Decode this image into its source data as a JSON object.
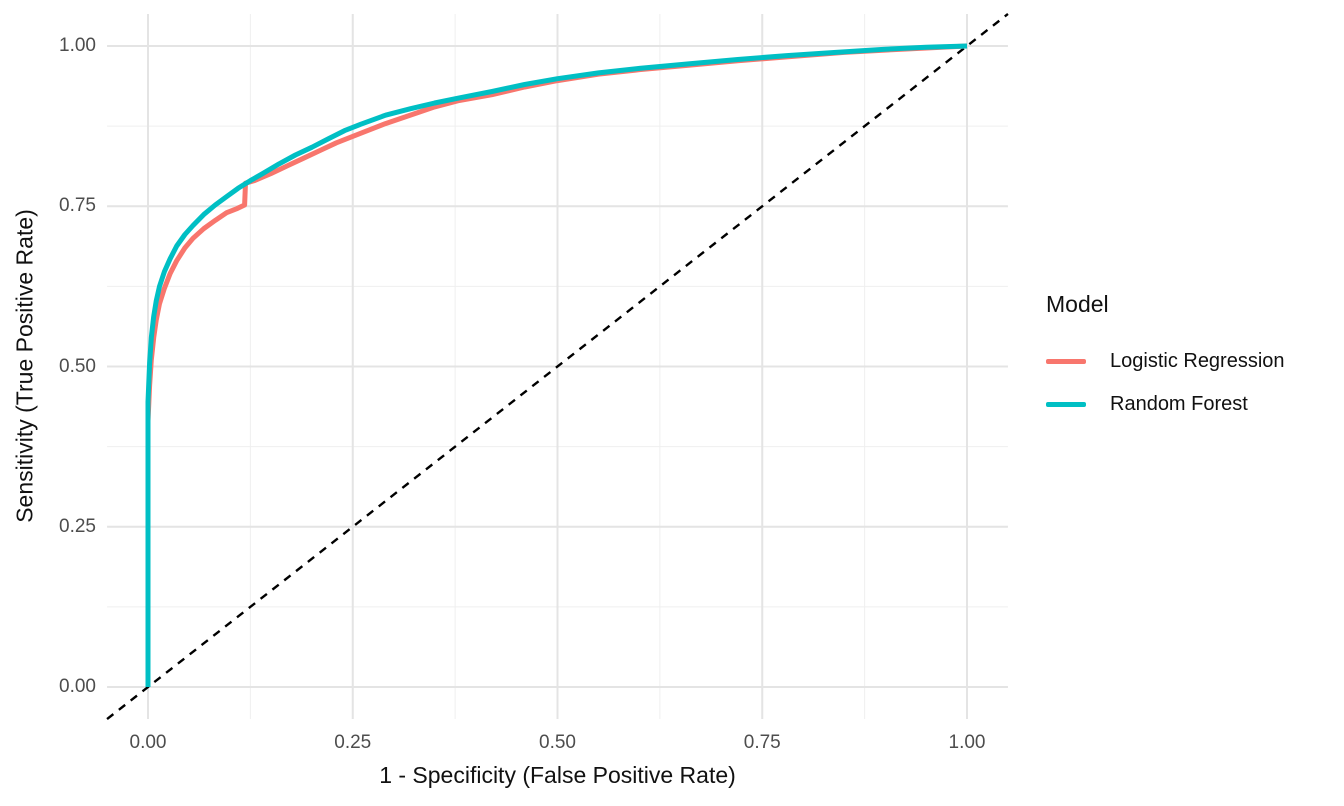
{
  "figure": {
    "x_axis": {
      "label": "1 - Specificity (False Positive Rate)",
      "tick_labels": [
        "0.00",
        "0.25",
        "0.50",
        "0.75",
        "1.00"
      ],
      "tick_values": [
        0,
        0.25,
        0.5,
        0.75,
        1
      ]
    },
    "y_axis": {
      "label": "Sensitivity (True Positive Rate)",
      "tick_labels": [
        "0.00",
        "0.25",
        "0.50",
        "0.75",
        "1.00"
      ],
      "tick_values": [
        0,
        0.25,
        0.5,
        0.75,
        1
      ]
    },
    "legend": {
      "title": "Model",
      "items": [
        {
          "label": "Logistic Regression",
          "color": "#F8766D"
        },
        {
          "label": "Random Forest",
          "color": "#00BFC4"
        }
      ]
    },
    "colors": {
      "background": "#FFFFFF",
      "grid_major": "#E4E4E4",
      "grid_minor": "#EFEFEF",
      "tick_text": "#4D4D4D",
      "axis_title_text": "#111111",
      "reference_line": "#000000"
    }
  },
  "chart_data": {
    "type": "line",
    "title": "",
    "xlabel": "1 - Specificity (False Positive Rate)",
    "ylabel": "Sensitivity (True Positive Rate)",
    "xlim": [
      -0.05,
      1.05
    ],
    "ylim": [
      -0.05,
      1.05
    ],
    "x_ticks": [
      0,
      0.25,
      0.5,
      0.75,
      1
    ],
    "y_ticks": [
      0,
      0.25,
      0.5,
      0.75,
      1
    ],
    "grid": "major+minor",
    "legend_position": "right",
    "legend_title": "Model",
    "reference_line": {
      "style": "dashed",
      "color": "#000000",
      "from": [
        0,
        0
      ],
      "to": [
        1,
        1
      ]
    },
    "series": [
      {
        "name": "Logistic Regression",
        "color": "#F8766D",
        "points": [
          [
            0,
            0
          ],
          [
            0,
            0.415
          ],
          [
            0.002,
            0.47
          ],
          [
            0.004,
            0.51
          ],
          [
            0.007,
            0.545
          ],
          [
            0.01,
            0.572
          ],
          [
            0.014,
            0.598
          ],
          [
            0.02,
            0.622
          ],
          [
            0.027,
            0.645
          ],
          [
            0.035,
            0.665
          ],
          [
            0.045,
            0.685
          ],
          [
            0.055,
            0.7
          ],
          [
            0.068,
            0.715
          ],
          [
            0.082,
            0.728
          ],
          [
            0.096,
            0.74
          ],
          [
            0.108,
            0.746
          ],
          [
            0.118,
            0.752
          ],
          [
            0.119,
            0.786
          ],
          [
            0.13,
            0.79
          ],
          [
            0.15,
            0.801
          ],
          [
            0.17,
            0.813
          ],
          [
            0.19,
            0.825
          ],
          [
            0.21,
            0.837
          ],
          [
            0.23,
            0.849
          ],
          [
            0.26,
            0.864
          ],
          [
            0.29,
            0.879
          ],
          [
            0.32,
            0.892
          ],
          [
            0.35,
            0.905
          ],
          [
            0.38,
            0.915
          ],
          [
            0.42,
            0.924
          ],
          [
            0.46,
            0.936
          ],
          [
            0.5,
            0.946
          ],
          [
            0.55,
            0.956
          ],
          [
            0.6,
            0.963
          ],
          [
            0.66,
            0.97
          ],
          [
            0.72,
            0.977
          ],
          [
            0.78,
            0.983
          ],
          [
            0.85,
            0.99
          ],
          [
            0.92,
            0.995
          ],
          [
            1,
            1
          ]
        ]
      },
      {
        "name": "Random Forest",
        "color": "#00BFC4",
        "points": [
          [
            0,
            0
          ],
          [
            0,
            0.445
          ],
          [
            0.002,
            0.505
          ],
          [
            0.004,
            0.545
          ],
          [
            0.007,
            0.578
          ],
          [
            0.01,
            0.602
          ],
          [
            0.014,
            0.625
          ],
          [
            0.02,
            0.648
          ],
          [
            0.027,
            0.668
          ],
          [
            0.035,
            0.688
          ],
          [
            0.045,
            0.706
          ],
          [
            0.055,
            0.72
          ],
          [
            0.068,
            0.737
          ],
          [
            0.082,
            0.752
          ],
          [
            0.096,
            0.765
          ],
          [
            0.11,
            0.778
          ],
          [
            0.125,
            0.79
          ],
          [
            0.14,
            0.801
          ],
          [
            0.16,
            0.816
          ],
          [
            0.18,
            0.83
          ],
          [
            0.2,
            0.842
          ],
          [
            0.22,
            0.855
          ],
          [
            0.24,
            0.868
          ],
          [
            0.26,
            0.878
          ],
          [
            0.29,
            0.892
          ],
          [
            0.32,
            0.902
          ],
          [
            0.35,
            0.911
          ],
          [
            0.38,
            0.919
          ],
          [
            0.42,
            0.929
          ],
          [
            0.46,
            0.94
          ],
          [
            0.5,
            0.949
          ],
          [
            0.55,
            0.958
          ],
          [
            0.6,
            0.965
          ],
          [
            0.66,
            0.972
          ],
          [
            0.72,
            0.979
          ],
          [
            0.78,
            0.985
          ],
          [
            0.84,
            0.99
          ],
          [
            0.9,
            0.995
          ],
          [
            0.95,
            0.998
          ],
          [
            1,
            1
          ]
        ]
      }
    ]
  }
}
